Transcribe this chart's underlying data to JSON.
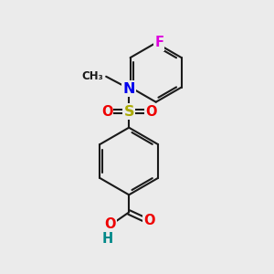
{
  "background_color": "#ebebeb",
  "bond_color": "#1a1a1a",
  "bond_width": 1.5,
  "atom_colors": {
    "N": "#0000ee",
    "S": "#aaaa00",
    "O": "#ee0000",
    "F": "#dd00dd",
    "H": "#008888",
    "C": "#1a1a1a"
  },
  "font_size_atom": 10.5
}
